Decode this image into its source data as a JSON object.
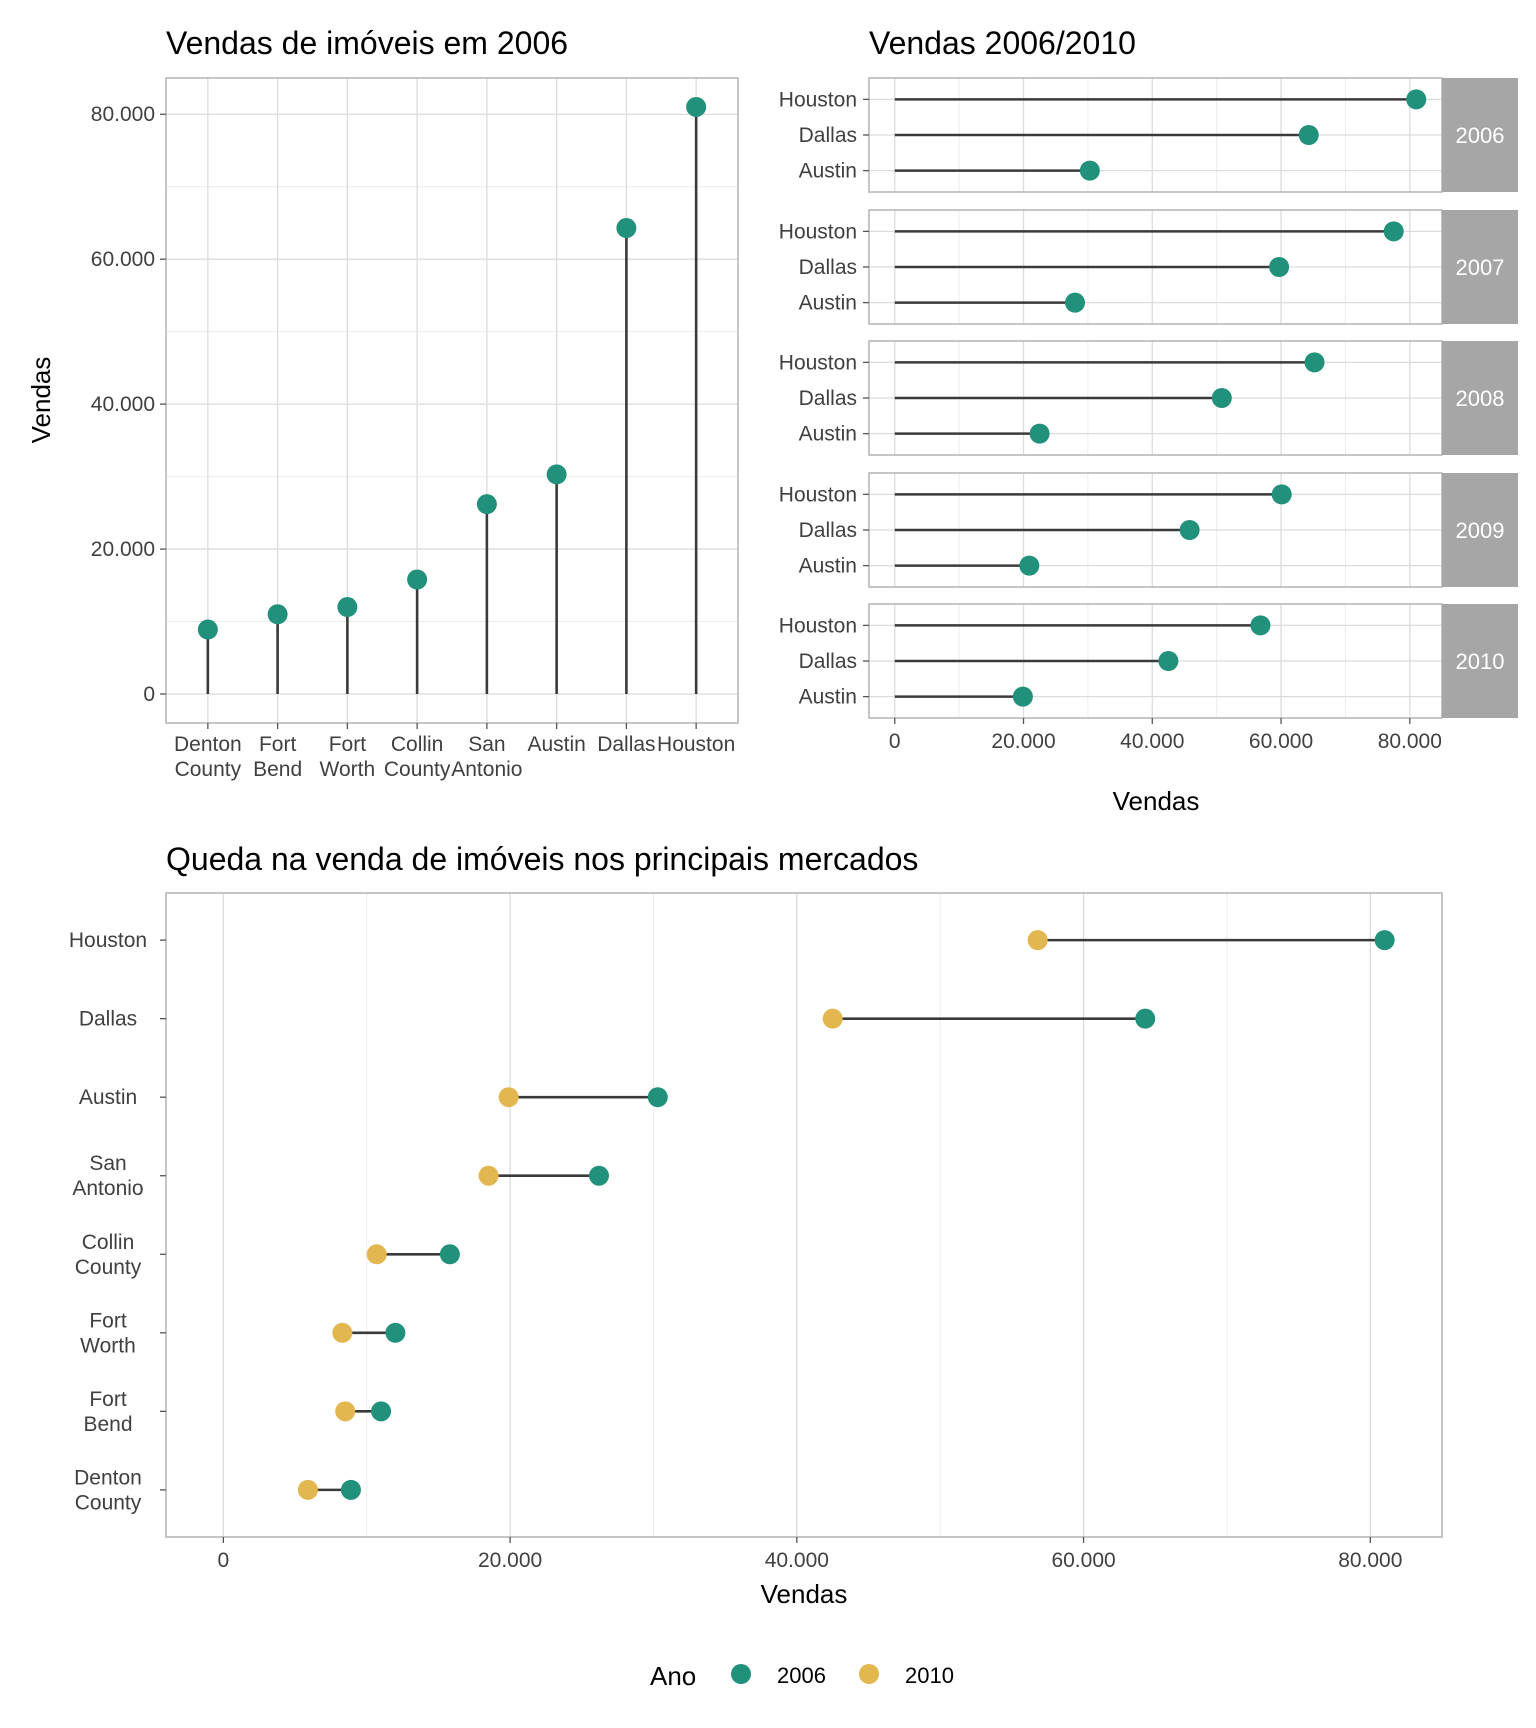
{
  "colors": {
    "c2006": "#22917b",
    "c2010": "#e3b74f",
    "segment": "#3a3a3a",
    "grid_major": "#dcdcdc",
    "grid_minor": "#ececec",
    "panel_border": "#b3b3b3",
    "strip_fill": "#a6a6a6",
    "strip_text": "#ffffff",
    "axis_text": "#404040",
    "title_text": "#000000"
  },
  "chart_data": [
    {
      "id": "chart1",
      "type": "lollipop",
      "title": "Vendas de imóveis em 2006",
      "xlabel": "",
      "ylabel": "Vendas",
      "categories": [
        "Denton\nCounty",
        "Fort\nBend",
        "Fort\nWorth",
        "Collin\nCounty",
        "San\nAntonio",
        "Austin",
        "Dallas",
        "Houston"
      ],
      "values": [
        8900,
        11000,
        12000,
        15800,
        26200,
        30300,
        64300,
        81000
      ],
      "ylim": [
        -4000,
        85000
      ],
      "yticks": [
        0,
        20000,
        40000,
        60000,
        80000
      ],
      "ytick_labels": [
        "0",
        "20.000",
        "40.000",
        "60.000",
        "80.000"
      ],
      "grid": true
    },
    {
      "id": "chart2",
      "type": "lollipop-facets",
      "title": "Vendas 2006/2010",
      "xlabel": "Vendas",
      "ylabel": "",
      "categories": [
        "Houston",
        "Dallas",
        "Austin"
      ],
      "facets": [
        {
          "label": "2006",
          "values": [
            81000,
            64300,
            30300
          ]
        },
        {
          "label": "2007",
          "values": [
            77500,
            59700,
            28000
          ]
        },
        {
          "label": "2008",
          "values": [
            65200,
            50800,
            22500
          ]
        },
        {
          "label": "2009",
          "values": [
            60100,
            45800,
            20900
          ]
        },
        {
          "label": "2010",
          "values": [
            56800,
            42500,
            19900
          ]
        }
      ],
      "xlim": [
        -4000,
        85000
      ],
      "xticks": [
        0,
        20000,
        40000,
        60000,
        80000
      ],
      "xtick_labels": [
        "0",
        "20.000",
        "40.000",
        "60.000",
        "80.000"
      ],
      "grid": true
    },
    {
      "id": "chart3",
      "type": "dumbbell",
      "title": "Queda na venda de imóveis nos principais mercados",
      "xlabel": "Vendas",
      "ylabel": "",
      "categories": [
        "Houston",
        "Dallas",
        "Austin",
        "San\nAntonio",
        "Collin\nCounty",
        "Fort\nWorth",
        "Fort\nBend",
        "Denton\nCounty"
      ],
      "series": [
        {
          "name": "2006",
          "values": [
            81000,
            64300,
            30300,
            26200,
            15800,
            12000,
            11000,
            8900
          ]
        },
        {
          "name": "2010",
          "values": [
            56800,
            42500,
            19900,
            18500,
            10700,
            8300,
            8500,
            5900
          ]
        }
      ],
      "xlim": [
        -4000,
        85000
      ],
      "xticks": [
        0,
        20000,
        40000,
        60000,
        80000
      ],
      "xtick_labels": [
        "0",
        "20.000",
        "40.000",
        "60.000",
        "80.000"
      ],
      "grid": true,
      "legend": {
        "title": "Ano",
        "position": "bottom",
        "entries": [
          "2006",
          "2010"
        ]
      }
    }
  ]
}
